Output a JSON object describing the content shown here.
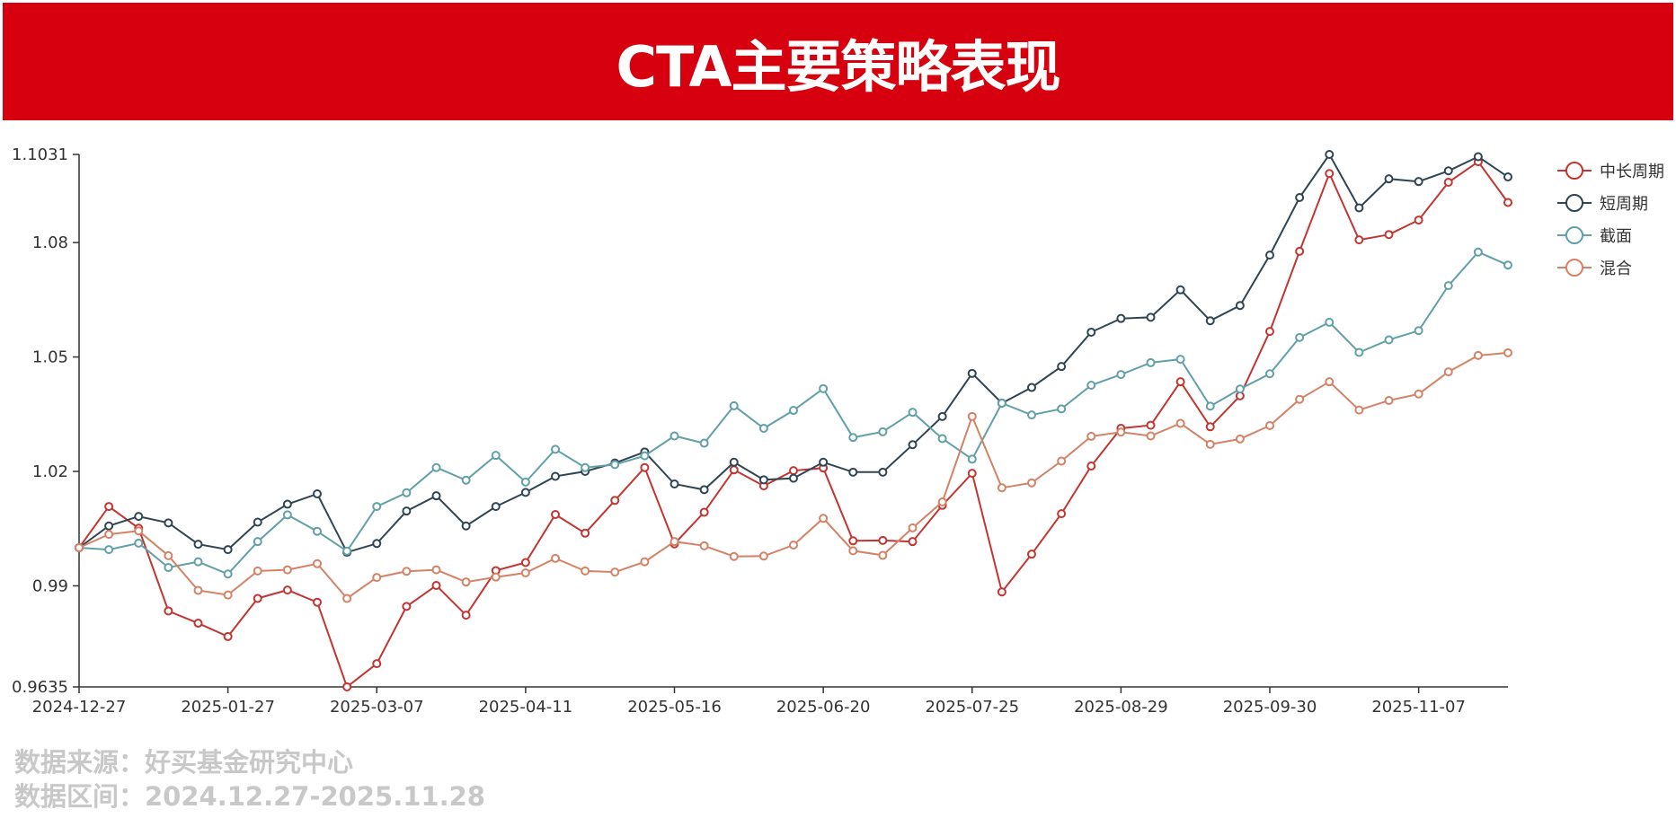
{
  "title": "CTA主要策略表现",
  "footer": {
    "source": "数据来源：好买基金研究中心",
    "range": "数据区间：2024.12.27-2025.11.28"
  },
  "chart_data": {
    "type": "line",
    "title": "CTA主要策略表现",
    "xlabel": "",
    "ylabel": "",
    "ylim": [
      0.9635,
      1.1031
    ],
    "yticks": [
      "1.1031",
      "1.08",
      "1.05",
      "1.02",
      "0.99",
      "0.9635"
    ],
    "ytick_values": [
      1.1031,
      1.08,
      1.05,
      1.02,
      0.99,
      0.9635
    ],
    "xtick_labels": [
      "2024-12-27",
      "2025-01-27",
      "2025-03-07",
      "2025-04-11",
      "2025-05-16",
      "2025-06-20",
      "2025-07-25",
      "2025-08-29",
      "2025-09-30",
      "2025-11-07"
    ],
    "xtick_every": 5,
    "num_points": 49,
    "grid": false,
    "legend_position": "right-top",
    "series": [
      {
        "name": "中长周期",
        "color": "#c23531",
        "values": [
          1.0,
          1.0108,
          1.0051,
          0.9834,
          0.9802,
          0.9767,
          0.9867,
          0.9889,
          0.9857,
          0.9635,
          0.9696,
          0.9846,
          0.9901,
          0.9823,
          0.994,
          0.9961,
          1.0087,
          1.0038,
          1.0124,
          1.021,
          1.001,
          1.0093,
          1.0204,
          1.0162,
          1.0202,
          1.0209,
          1.0018,
          1.0019,
          1.0016,
          1.0111,
          1.0195,
          0.9884,
          0.9983,
          1.0089,
          1.0214,
          1.0313,
          1.0321,
          1.0435,
          1.0317,
          1.0398,
          1.0567,
          1.0777,
          1.0981,
          1.0807,
          1.0821,
          1.0859,
          1.0958,
          1.1012,
          1.0905
        ]
      },
      {
        "name": "短周期",
        "color": "#2f4554",
        "values": [
          1.0,
          1.0057,
          1.0082,
          1.0065,
          1.0009,
          0.9995,
          1.0067,
          1.0114,
          1.0141,
          0.9988,
          1.0011,
          1.0096,
          1.0136,
          1.0057,
          1.0108,
          1.0145,
          1.0187,
          1.02,
          1.0222,
          1.0251,
          1.0167,
          1.0152,
          1.0224,
          1.0178,
          1.0182,
          1.0224,
          1.0198,
          1.0198,
          1.027,
          1.0344,
          1.0457,
          1.0379,
          1.042,
          1.0475,
          1.0565,
          1.0601,
          1.0604,
          1.0676,
          1.0595,
          1.0635,
          1.0767,
          1.0918,
          1.1031,
          1.0891,
          1.0967,
          1.096,
          1.0988,
          1.1025,
          1.0972
        ]
      },
      {
        "name": "截面",
        "color": "#61a0a8",
        "values": [
          1.0,
          0.9995,
          1.0012,
          0.9948,
          0.9963,
          0.9931,
          1.0016,
          1.0086,
          1.0043,
          0.9991,
          1.0108,
          1.0144,
          1.021,
          1.0177,
          1.0242,
          1.0172,
          1.0258,
          1.021,
          1.0218,
          1.0241,
          1.0293,
          1.0274,
          1.0372,
          1.0313,
          1.036,
          1.0417,
          1.0289,
          1.0304,
          1.0355,
          1.0286,
          1.0232,
          1.0379,
          1.0348,
          1.0364,
          1.0426,
          1.0454,
          1.0485,
          1.0494,
          1.0371,
          1.0416,
          1.0456,
          1.0551,
          1.0591,
          1.0512,
          1.0545,
          1.0569,
          1.0687,
          1.0775,
          1.0741
        ]
      },
      {
        "name": "混合",
        "color": "#d48265",
        "values": [
          1.0,
          1.0035,
          1.0044,
          0.9979,
          0.9888,
          0.9876,
          0.9939,
          0.9942,
          0.9958,
          0.9867,
          0.9922,
          0.9938,
          0.9942,
          0.991,
          0.9923,
          0.9934,
          0.9972,
          0.9939,
          0.9936,
          0.9963,
          1.0016,
          1.0005,
          0.9977,
          0.9978,
          1.0007,
          1.0077,
          0.9992,
          0.998,
          1.0052,
          1.012,
          1.0344,
          1.0157,
          1.017,
          1.0227,
          1.0292,
          1.0303,
          1.0293,
          1.0326,
          1.0271,
          1.0285,
          1.032,
          1.0389,
          1.0435,
          1.0361,
          1.0386,
          1.0403,
          1.0461,
          1.0504,
          1.0511
        ]
      }
    ]
  }
}
